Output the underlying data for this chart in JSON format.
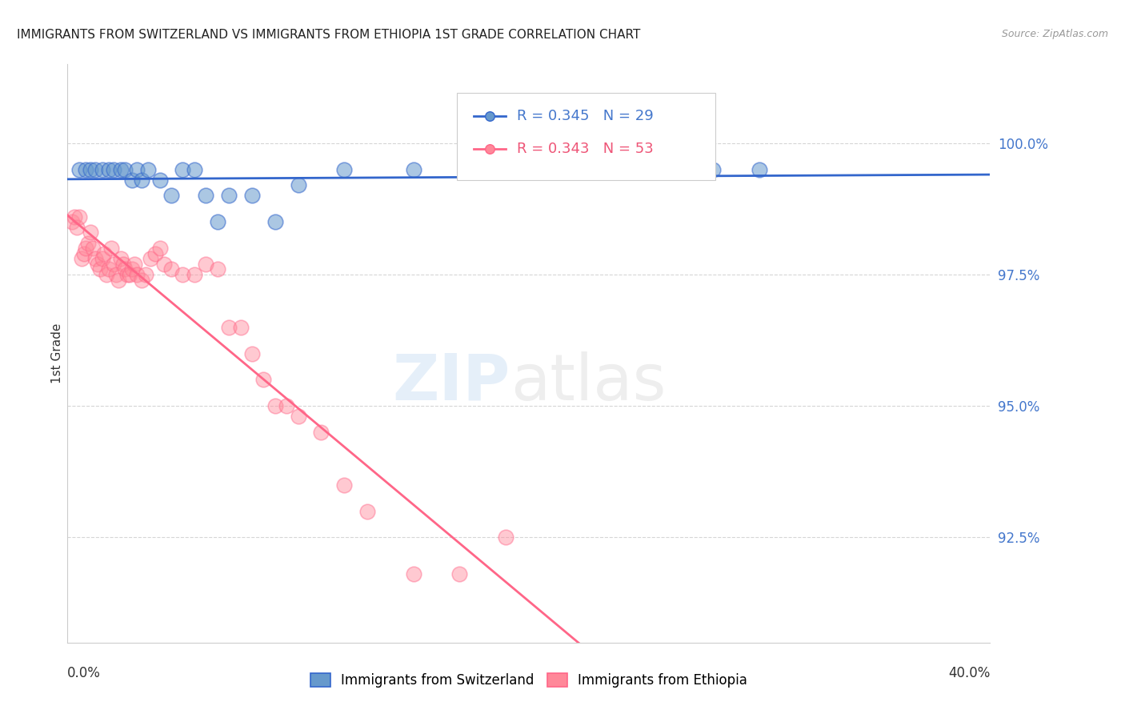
{
  "title": "IMMIGRANTS FROM SWITZERLAND VS IMMIGRANTS FROM ETHIOPIA 1ST GRADE CORRELATION CHART",
  "source": "Source: ZipAtlas.com",
  "ylabel": "1st Grade",
  "xlim": [
    0.0,
    40.0
  ],
  "ylim": [
    90.5,
    101.5
  ],
  "legend_blue_r": "R = 0.345",
  "legend_blue_n": "N = 29",
  "legend_pink_r": "R = 0.343",
  "legend_pink_n": "N = 53",
  "blue_color": "#6699CC",
  "pink_color": "#FF8899",
  "blue_line_color": "#3366CC",
  "pink_line_color": "#FF6688",
  "blue_scatter_x": [
    0.5,
    0.8,
    1.0,
    1.2,
    1.5,
    1.8,
    2.0,
    2.3,
    2.5,
    2.8,
    3.0,
    3.2,
    3.5,
    4.0,
    4.5,
    5.0,
    5.5,
    6.0,
    6.5,
    7.0,
    8.0,
    9.0,
    10.0,
    12.0,
    15.0,
    20.0,
    25.0,
    28.0,
    30.0
  ],
  "blue_scatter_y": [
    99.5,
    99.5,
    99.5,
    99.5,
    99.5,
    99.5,
    99.5,
    99.5,
    99.5,
    99.3,
    99.5,
    99.3,
    99.5,
    99.3,
    99.0,
    99.5,
    99.5,
    99.0,
    98.5,
    99.0,
    99.0,
    98.5,
    99.2,
    99.5,
    99.5,
    99.5,
    99.5,
    99.5,
    99.5
  ],
  "pink_scatter_x": [
    0.2,
    0.3,
    0.4,
    0.5,
    0.6,
    0.7,
    0.8,
    0.9,
    1.0,
    1.1,
    1.2,
    1.3,
    1.4,
    1.5,
    1.6,
    1.7,
    1.8,
    1.9,
    2.0,
    2.1,
    2.2,
    2.3,
    2.4,
    2.5,
    2.6,
    2.7,
    2.8,
    2.9,
    3.0,
    3.2,
    3.4,
    3.6,
    3.8,
    4.0,
    4.2,
    4.5,
    5.0,
    5.5,
    6.0,
    6.5,
    7.0,
    7.5,
    8.0,
    8.5,
    9.0,
    9.5,
    10.0,
    11.0,
    12.0,
    13.0,
    15.0,
    17.0,
    19.0
  ],
  "pink_scatter_y": [
    98.5,
    98.6,
    98.4,
    98.6,
    97.8,
    97.9,
    98.0,
    98.1,
    98.3,
    98.0,
    97.8,
    97.7,
    97.6,
    97.8,
    97.9,
    97.5,
    97.6,
    98.0,
    97.7,
    97.5,
    97.4,
    97.8,
    97.7,
    97.6,
    97.5,
    97.5,
    97.6,
    97.7,
    97.5,
    97.4,
    97.5,
    97.8,
    97.9,
    98.0,
    97.7,
    97.6,
    97.5,
    97.5,
    97.7,
    97.6,
    96.5,
    96.5,
    96.0,
    95.5,
    95.0,
    95.0,
    94.8,
    94.5,
    93.5,
    93.0,
    91.8,
    91.8,
    92.5
  ],
  "yticks": [
    92.5,
    95.0,
    97.5,
    100.0
  ],
  "xtick_positions": [
    0,
    10,
    20,
    30,
    40
  ]
}
